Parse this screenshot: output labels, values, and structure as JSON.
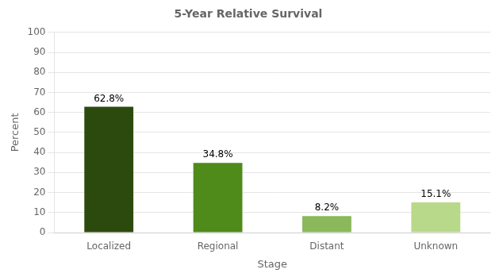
{
  "chart_data": {
    "type": "bar",
    "title": "5-Year Relative Survival",
    "xlabel": "Stage",
    "ylabel": "Percent",
    "categories": [
      "Localized",
      "Regional",
      "Distant",
      "Unknown"
    ],
    "values": [
      62.8,
      34.8,
      8.2,
      15.1
    ],
    "value_labels": [
      "62.8%",
      "34.8%",
      "8.2%",
      "15.1%"
    ],
    "colors": [
      "#2d4a0e",
      "#4e8b1a",
      "#8ab85a",
      "#b8d98a"
    ],
    "ylim": [
      0,
      100
    ],
    "yticks": [
      0,
      10,
      20,
      30,
      40,
      50,
      60,
      70,
      80,
      90,
      100
    ],
    "grid": true,
    "data_labels": true
  }
}
